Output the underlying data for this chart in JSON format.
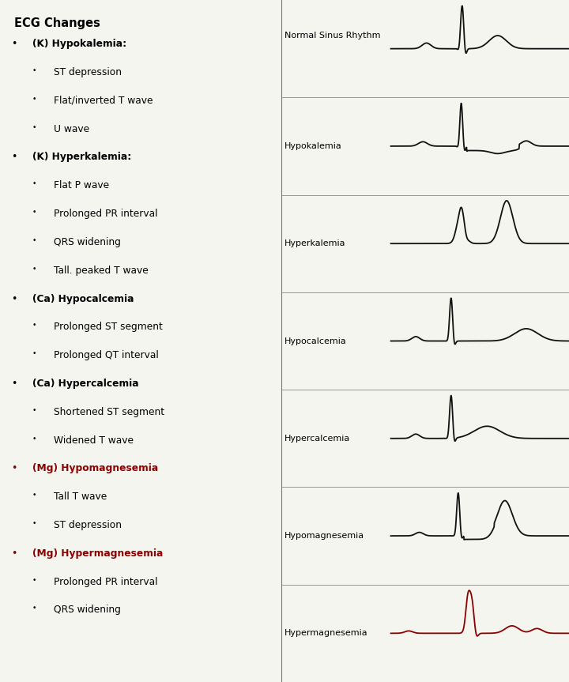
{
  "background_color": "#f5f5f0",
  "text_color": "#000000",
  "red_color": "#8B0000",
  "left_panel": {
    "header": "ECG Changes",
    "items": [
      {
        "text": "(K) Hypokalemia:",
        "bold": true,
        "color": "black",
        "indent": 0
      },
      {
        "text": "ST depression",
        "bold": false,
        "color": "black",
        "indent": 1
      },
      {
        "text": "Flat/inverted T wave",
        "bold": false,
        "color": "black",
        "indent": 1
      },
      {
        "text": "U wave",
        "bold": false,
        "color": "black",
        "indent": 1
      },
      {
        "text": "(K) Hyperkalemia:",
        "bold": true,
        "color": "black",
        "indent": 0
      },
      {
        "text": "Flat P wave",
        "bold": false,
        "color": "black",
        "indent": 1
      },
      {
        "text": "Prolonged PR interval",
        "bold": false,
        "color": "black",
        "indent": 1
      },
      {
        "text": "QRS widening",
        "bold": false,
        "color": "black",
        "indent": 1
      },
      {
        "text": "Tall. peaked T wave",
        "bold": false,
        "color": "black",
        "indent": 1
      },
      {
        "text": "(Ca) Hypocalcemia",
        "bold": true,
        "color": "black",
        "indent": 0
      },
      {
        "text": "Prolonged ST segment",
        "bold": false,
        "color": "black",
        "indent": 1
      },
      {
        "text": "Prolonged QT interval",
        "bold": false,
        "color": "black",
        "indent": 1
      },
      {
        "text": "(Ca) Hypercalcemia",
        "bold": true,
        "color": "black",
        "indent": 0
      },
      {
        "text": "Shortened ST segment",
        "bold": false,
        "color": "black",
        "indent": 1
      },
      {
        "text": "Widened T wave",
        "bold": false,
        "color": "black",
        "indent": 1
      },
      {
        "text": "(Mg) Hypomagnesemia",
        "bold": true,
        "color": "#8B0000",
        "indent": 0
      },
      {
        "text": "Tall T wave",
        "bold": false,
        "color": "black",
        "indent": 1
      },
      {
        "text": "ST depression",
        "bold": false,
        "color": "black",
        "indent": 1
      },
      {
        "text": "(Mg) Hypermagnesemia",
        "bold": true,
        "color": "#8B0000",
        "indent": 0
      },
      {
        "text": "Prolonged PR interval",
        "bold": false,
        "color": "black",
        "indent": 1
      },
      {
        "text": "QRS widening",
        "bold": false,
        "color": "black",
        "indent": 1
      }
    ]
  },
  "right_panel": {
    "labels": [
      "Normal Sinus Rhythm",
      "Hypokalemia",
      "Hyperkalemia",
      "Hypocalcemia",
      "Hypercalcemia",
      "Hypomagnesemia",
      "Hypermagnesemia"
    ],
    "label_colors": [
      "black",
      "black",
      "black",
      "black",
      "black",
      "black",
      "black"
    ],
    "ecg_colors": [
      "#111111",
      "#111111",
      "#111111",
      "#111111",
      "#111111",
      "#111111",
      "#8B0000"
    ],
    "ecg_lw": [
      1.3,
      1.3,
      1.3,
      1.3,
      1.3,
      1.3,
      1.3
    ]
  }
}
